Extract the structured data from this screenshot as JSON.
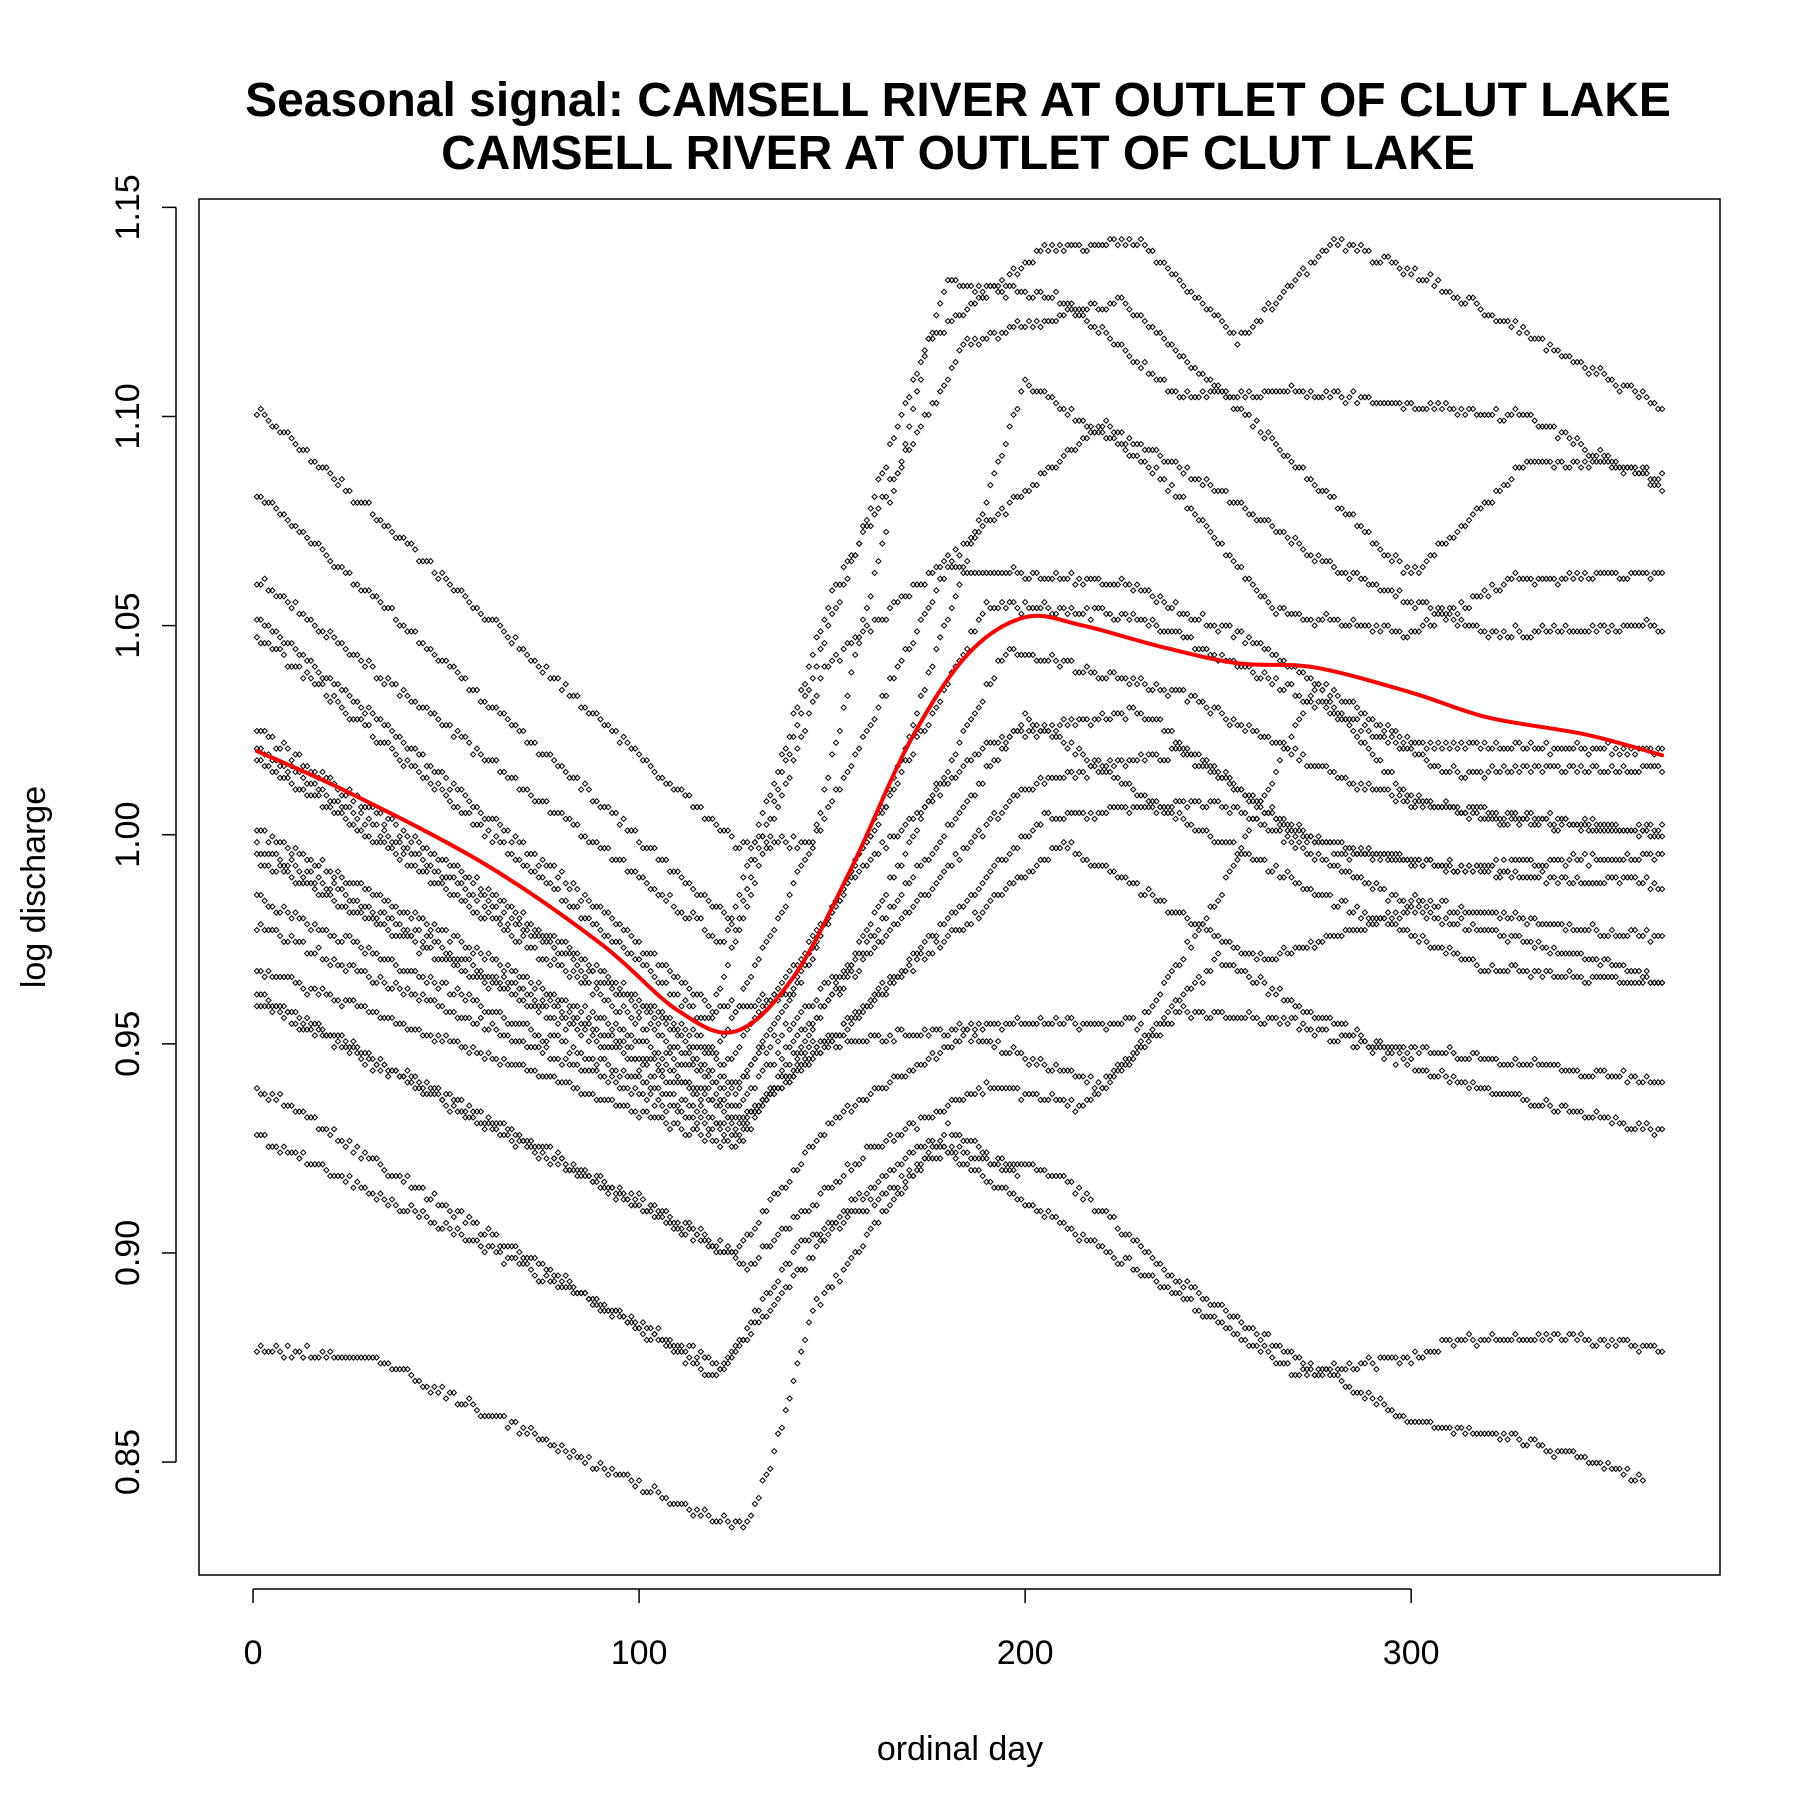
{
  "colors": {
    "points": "#000000",
    "smooth_line": "#ff0000",
    "background": "#ffffff"
  },
  "chart_data": {
    "type": "scatter",
    "title_lines": [
      "Seasonal signal: CAMSELL RIVER AT OUTLET OF CLUT LAKE",
      "CAMSELL RIVER AT OUTLET OF CLUT LAKE"
    ],
    "xlabel": "ordinal day",
    "ylabel": "log discharge",
    "xlim": [
      -14,
      380
    ],
    "ylim": [
      0.823,
      1.152
    ],
    "x_ticks": [
      0,
      100,
      200,
      300
    ],
    "x_tick_labels": [
      "0",
      "100",
      "200",
      "300"
    ],
    "y_ticks": [
      0.85,
      0.9,
      0.95,
      1.0,
      1.05,
      1.1,
      1.15
    ],
    "y_tick_labels": [
      "0.85",
      "0.90",
      "0.95",
      "1.00",
      "1.05",
      "1.10",
      "1.15"
    ],
    "grid": false,
    "point_marker": "open-diamond",
    "series_note": "Each annual trace is given by day/log-discharge control points; daily points are linearly interpolated between them.",
    "series": [
      {
        "points": [
          [
            1,
            1.102
          ],
          [
            125,
            0.998
          ],
          [
            145,
            0.998
          ],
          [
            175,
            1.118
          ],
          [
            205,
            1.14
          ],
          [
            230,
            1.142
          ],
          [
            255,
            1.118
          ],
          [
            280,
            1.142
          ],
          [
            300,
            1.135
          ],
          [
            365,
            1.102
          ]
        ]
      },
      {
        "points": [
          [
            1,
            1.082
          ],
          [
            125,
            0.978
          ],
          [
            145,
            1.038
          ],
          [
            180,
            1.132
          ],
          [
            210,
            1.128
          ],
          [
            240,
            1.105
          ],
          [
            270,
            1.106
          ],
          [
            330,
            1.1
          ],
          [
            365,
            1.083
          ]
        ]
      },
      {
        "points": [
          [
            1,
            1.061
          ],
          [
            122,
            0.974
          ],
          [
            150,
            1.058
          ],
          [
            185,
            1.118
          ],
          [
            225,
            1.128
          ],
          [
            260,
            1.098
          ],
          [
            300,
            1.062
          ],
          [
            330,
            1.089
          ],
          [
            350,
            1.089
          ],
          [
            365,
            1.085
          ]
        ]
      },
      {
        "points": [
          [
            1,
            1.052
          ],
          [
            120,
            0.958
          ],
          [
            140,
            0.962
          ],
          [
            165,
            1.01
          ],
          [
            200,
            1.108
          ],
          [
            235,
            1.086
          ],
          [
            265,
            1.053
          ],
          [
            300,
            1.048
          ],
          [
            325,
            1.061
          ],
          [
            365,
            1.062
          ]
        ]
      },
      {
        "points": [
          [
            1,
            1.048
          ],
          [
            118,
            0.955
          ],
          [
            148,
            1.04
          ],
          [
            185,
            1.07
          ],
          [
            220,
            1.098
          ],
          [
            250,
            1.082
          ],
          [
            280,
            1.064
          ],
          [
            320,
            1.048
          ],
          [
            365,
            1.05
          ]
        ]
      },
      {
        "points": [
          [
            1,
            1.025
          ],
          [
            120,
            0.948
          ],
          [
            150,
            1.008
          ],
          [
            180,
            1.064
          ],
          [
            225,
            1.06
          ],
          [
            260,
            1.046
          ],
          [
            300,
            1.022
          ],
          [
            365,
            1.02
          ]
        ]
      },
      {
        "points": [
          [
            1,
            1.021
          ],
          [
            122,
            0.945
          ],
          [
            152,
            0.985
          ],
          [
            190,
            1.055
          ],
          [
            230,
            1.052
          ],
          [
            270,
            1.034
          ],
          [
            310,
            1.015
          ],
          [
            365,
            1.016
          ]
        ]
      },
      {
        "points": [
          [
            1,
            1.018
          ],
          [
            124,
            0.94
          ],
          [
            155,
            0.97
          ],
          [
            195,
            1.044
          ],
          [
            240,
            1.034
          ],
          [
            285,
            1.012
          ],
          [
            325,
            1.003
          ],
          [
            365,
            1.001
          ]
        ]
      },
      {
        "points": [
          [
            1,
            1.001
          ],
          [
            125,
            0.938
          ],
          [
            155,
            0.99
          ],
          [
            190,
            1.022
          ],
          [
            230,
            1.03
          ],
          [
            270,
            1.0
          ],
          [
            310,
            0.992
          ],
          [
            365,
            0.995
          ]
        ]
      },
      {
        "points": [
          [
            1,
            0.997
          ],
          [
            125,
            0.935
          ],
          [
            160,
            0.972
          ],
          [
            200,
            1.012
          ],
          [
            240,
            1.02
          ],
          [
            280,
            0.996
          ],
          [
            330,
            0.99
          ],
          [
            365,
            0.988
          ]
        ]
      },
      {
        "points": [
          [
            1,
            0.994
          ],
          [
            127,
            0.932
          ],
          [
            162,
            0.962
          ],
          [
            205,
            1.004
          ],
          [
            250,
            1.008
          ],
          [
            295,
            0.985
          ],
          [
            340,
            0.978
          ],
          [
            365,
            0.975
          ]
        ]
      },
      {
        "points": [
          [
            1,
            0.985
          ],
          [
            125,
            0.93
          ],
          [
            170,
            0.968
          ],
          [
            210,
            0.998
          ],
          [
            260,
            0.97
          ],
          [
            300,
            0.982
          ],
          [
            340,
            0.972
          ],
          [
            365,
            0.965
          ]
        ]
      },
      {
        "points": [
          [
            1,
            0.978
          ],
          [
            125,
            0.928
          ],
          [
            145,
            0.95
          ],
          [
            200,
            0.955
          ],
          [
            230,
            0.955
          ],
          [
            250,
            0.985
          ],
          [
            275,
            1.036
          ],
          [
            300,
            1.008
          ],
          [
            365,
            1.0
          ]
        ]
      },
      {
        "points": [
          [
            1,
            0.968
          ],
          [
            125,
            0.925
          ],
          [
            150,
            0.962
          ],
          [
            200,
            1.028
          ],
          [
            240,
            1.004
          ],
          [
            280,
            0.984
          ],
          [
            320,
            0.968
          ],
          [
            365,
            0.964
          ]
        ]
      },
      {
        "points": [
          [
            1,
            0.962
          ],
          [
            125,
            0.9
          ],
          [
            150,
            0.932
          ],
          [
            185,
            0.952
          ],
          [
            220,
            0.94
          ],
          [
            250,
            0.97
          ],
          [
            290,
            0.95
          ],
          [
            330,
            0.945
          ],
          [
            365,
            0.941
          ]
        ]
      },
      {
        "points": [
          [
            1,
            0.96
          ],
          [
            128,
            0.897
          ],
          [
            160,
            0.925
          ],
          [
            190,
            0.94
          ],
          [
            215,
            0.935
          ],
          [
            240,
            0.958
          ],
          [
            270,
            0.955
          ],
          [
            310,
            0.942
          ],
          [
            340,
            0.934
          ],
          [
            365,
            0.929
          ]
        ]
      },
      {
        "points": [
          [
            1,
            0.94
          ],
          [
            120,
            0.87
          ],
          [
            140,
            0.9
          ],
          [
            175,
            0.927
          ],
          [
            200,
            0.912
          ],
          [
            240,
            0.89
          ],
          [
            270,
            0.871
          ],
          [
            300,
            0.875
          ],
          [
            310,
            0.879
          ],
          [
            340,
            0.88
          ],
          [
            365,
            0.877
          ]
        ]
      },
      {
        "points": [
          [
            1,
            0.928
          ],
          [
            122,
            0.873
          ],
          [
            150,
            0.906
          ],
          [
            180,
            0.925
          ],
          [
            210,
            0.918
          ],
          [
            240,
            0.893
          ],
          [
            270,
            0.875
          ],
          [
            300,
            0.86
          ],
          [
            330,
            0.855
          ],
          [
            360,
            0.846
          ]
        ]
      },
      {
        "points": [
          [
            1,
            0.877
          ],
          [
            30,
            0.875
          ],
          [
            120,
            0.836
          ],
          [
            128,
            0.835
          ],
          [
            135,
            0.852
          ],
          [
            145,
            0.886
          ],
          [
            160,
            0.905
          ],
          [
            180,
            0.93
          ],
          [
            198,
            0.918
          ]
        ]
      }
    ],
    "smooth_curve": [
      [
        1,
        1.02
      ],
      [
        25,
        1.01
      ],
      [
        60,
        0.993
      ],
      [
        90,
        0.974
      ],
      [
        110,
        0.958
      ],
      [
        125,
        0.953
      ],
      [
        140,
        0.966
      ],
      [
        155,
        0.992
      ],
      [
        170,
        1.022
      ],
      [
        185,
        1.043
      ],
      [
        200,
        1.052
      ],
      [
        215,
        1.05
      ],
      [
        235,
        1.045
      ],
      [
        255,
        1.041
      ],
      [
        275,
        1.04
      ],
      [
        300,
        1.034
      ],
      [
        320,
        1.028
      ],
      [
        345,
        1.024
      ],
      [
        365,
        1.019
      ]
    ]
  }
}
